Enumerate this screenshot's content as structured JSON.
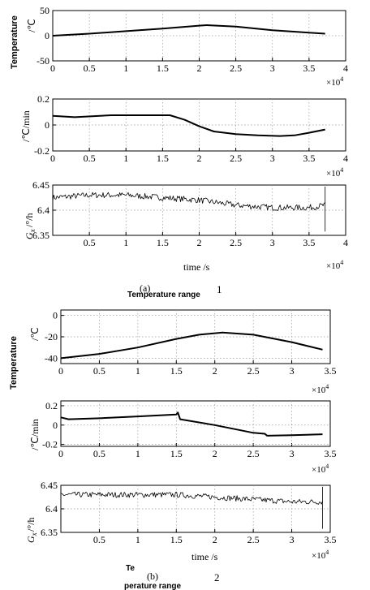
{
  "chart_data": [
    {
      "panel": "a1",
      "type": "line",
      "ylabel": "Temperature /°C",
      "xlim": [
        0,
        4
      ],
      "ylim": [
        -50,
        50
      ],
      "xticks": [
        "0",
        "0.5",
        "1",
        "1.5",
        "2",
        "2.5",
        "3",
        "3.5",
        "4"
      ],
      "yticks": [
        "50",
        "0",
        "-50"
      ],
      "multiplier": "×10⁴",
      "grid": true,
      "series": [
        {
          "x": [
            0,
            0.5,
            1,
            1.5,
            2,
            2.1,
            2.5,
            3,
            3.5,
            3.72
          ],
          "y": [
            0,
            4,
            9,
            14,
            20,
            21,
            18,
            11,
            6,
            4
          ]
        }
      ]
    },
    {
      "panel": "a2",
      "type": "line",
      "ylabel": "/°C/min",
      "xlim": [
        0,
        4
      ],
      "ylim": [
        -0.2,
        0.2
      ],
      "xticks": [
        "0",
        "0.5",
        "1",
        "1.5",
        "2",
        "2.5",
        "3",
        "3.5",
        "4"
      ],
      "yticks": [
        "0.2",
        "0",
        "-0.2"
      ],
      "multiplier": "×10⁴",
      "grid": true,
      "series": [
        {
          "x": [
            0,
            0.3,
            0.8,
            1.2,
            1.6,
            1.8,
            2.0,
            2.2,
            2.5,
            2.8,
            3.1,
            3.3,
            3.5,
            3.72
          ],
          "y": [
            0.07,
            0.06,
            0.075,
            0.075,
            0.075,
            0.04,
            -0.01,
            -0.05,
            -0.07,
            -0.08,
            -0.085,
            -0.08,
            -0.06,
            -0.035
          ]
        }
      ]
    },
    {
      "panel": "a3",
      "type": "line",
      "ylabel": "Gx /°/h",
      "xlabel": "time /s",
      "xlim": [
        0,
        4
      ],
      "ylim": [
        6.35,
        6.45
      ],
      "xticks": [
        "0.5",
        "1",
        "1.5",
        "2",
        "2.5",
        "3",
        "3.5",
        "4"
      ],
      "yticks": [
        "6.45",
        "6.4",
        "6.35"
      ],
      "multiplier": "×10⁴",
      "grid": true,
      "series": [
        {
          "x": [
            0,
            0.5,
            1,
            1.5,
            2,
            2.5,
            3,
            3.5,
            3.72
          ],
          "y": [
            6.425,
            6.43,
            6.43,
            6.425,
            6.42,
            6.41,
            6.405,
            6.405,
            6.41
          ],
          "noise": 0.006
        }
      ]
    },
    {
      "panel": "b1",
      "type": "line",
      "ylabel": "Temperature /°C",
      "xlim": [
        0,
        3.5
      ],
      "ylim": [
        -45,
        5
      ],
      "xticks": [
        "0",
        "0.5",
        "1",
        "1.5",
        "2",
        "2.5",
        "3",
        "3.5"
      ],
      "yticks": [
        "0",
        "-20",
        "-40"
      ],
      "multiplier": "×10⁴",
      "grid": true,
      "series": [
        {
          "x": [
            0,
            0.5,
            1,
            1.5,
            1.8,
            2.1,
            2.5,
            3,
            3.4
          ],
          "y": [
            -40,
            -36,
            -30,
            -22,
            -18,
            -16,
            -18,
            -25,
            -32
          ]
        }
      ]
    },
    {
      "panel": "b2",
      "type": "line",
      "ylabel": "/°C/min",
      "xlim": [
        0,
        3.5
      ],
      "ylim": [
        -0.22,
        0.25
      ],
      "xticks": [
        "0",
        "0.5",
        "1",
        "1.5",
        "2",
        "2.5",
        "3",
        "3.5"
      ],
      "yticks": [
        "0.2",
        "0",
        "-0.2"
      ],
      "multiplier": "×10⁴",
      "grid": true,
      "series": [
        {
          "x": [
            0,
            0.1,
            0.5,
            1,
            1.5,
            1.52,
            1.55,
            2,
            2.5,
            2.65,
            2.68,
            3,
            3.4
          ],
          "y": [
            0.08,
            0.06,
            0.07,
            0.09,
            0.11,
            0.13,
            0.06,
            0.0,
            -0.08,
            -0.09,
            -0.11,
            -0.105,
            -0.095
          ]
        }
      ]
    },
    {
      "panel": "b3",
      "type": "line",
      "ylabel": "Gx /°/h",
      "xlabel": "time /s",
      "xlim": [
        0,
        3.5
      ],
      "ylim": [
        6.35,
        6.45
      ],
      "xticks": [
        "0.5",
        "1",
        "1.5",
        "2",
        "2.5",
        "3",
        "3.5"
      ],
      "yticks": [
        "6.45",
        "6.4",
        "6.35"
      ],
      "multiplier": "×10⁴",
      "grid": true,
      "series": [
        {
          "x": [
            0,
            0.5,
            1,
            1.5,
            2,
            2.5,
            3,
            3.4
          ],
          "y": [
            6.43,
            6.43,
            6.43,
            6.43,
            6.425,
            6.42,
            6.415,
            6.415
          ],
          "noise": 0.006
        }
      ]
    }
  ],
  "text": {
    "a_temp_label": "Temperature",
    "a_temp_unit": "/℃",
    "a_rate_label": "/℃/min",
    "a_gx_label": "Gx",
    "a_gx_sub": "x",
    "a_gx_unit": "/°/h",
    "a_time_label": "time /s",
    "a_mult_1": "×10",
    "a_mult_2": "×10",
    "a_mult_3": "×10",
    "mult_exp": "4",
    "caption_a_letter": "(a)",
    "caption_a_text": "Temperature range",
    "caption_a_num": "1",
    "b_temp_label": "Temperature",
    "b_temp_unit": "/℃",
    "b_rate_label": "/℃/min",
    "b_gx_label": "Gx",
    "b_gx_unit": "/°/h",
    "b_time_label": "time /s",
    "b_mult_1": "×10",
    "b_mult_2": "×10",
    "b_mult_3": "×10",
    "caption_b_te": "Te",
    "caption_b_letter": "(b)",
    "caption_b_rest": "perature range",
    "caption_b_num": "2"
  }
}
